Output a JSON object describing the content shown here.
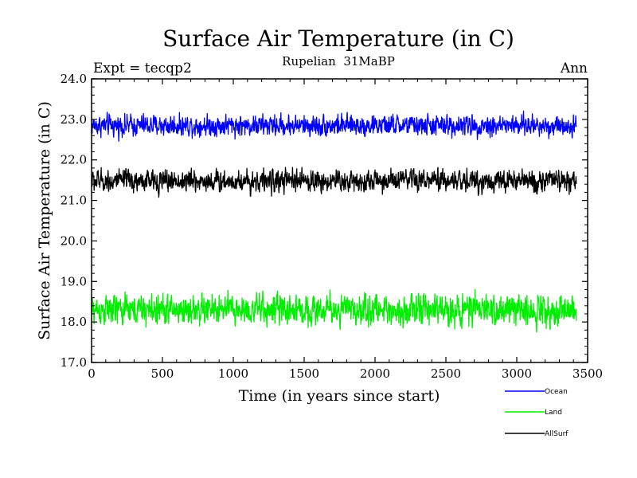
{
  "chart_data": {
    "type": "line",
    "title": "Surface Air Temperature (in C)",
    "subtitle": "Rupelian  31MaBP",
    "left_annotation": "Expt = tecqp2",
    "right_annotation": "Ann",
    "xlabel": "Time (in years since start)",
    "ylabel": "Surface Air Temperature (in C)",
    "xlim": [
      0,
      3500
    ],
    "ylim": [
      17.0,
      24.0
    ],
    "x_ticks": [
      0,
      500,
      1000,
      1500,
      2000,
      2500,
      3000,
      3500
    ],
    "y_ticks": [
      "17.0",
      "18.0",
      "19.0",
      "20.0",
      "21.0",
      "22.0",
      "23.0",
      "24.0"
    ],
    "x_range": [
      0,
      3420
    ],
    "grid": false,
    "legend_position": "bottom-right",
    "series": [
      {
        "name": "Ocean",
        "color": "#0000ff",
        "mean": 22.85,
        "noise_amplitude": 0.18,
        "min": 22.45,
        "max": 23.25
      },
      {
        "name": "Land",
        "color": "#00ee00",
        "mean": 18.3,
        "noise_amplitude": 0.26,
        "min": 17.65,
        "max": 19.05
      },
      {
        "name": "AllSurf",
        "color": "#000000",
        "mean": 21.48,
        "noise_amplitude": 0.19,
        "min": 21.0,
        "max": 21.95
      }
    ]
  }
}
